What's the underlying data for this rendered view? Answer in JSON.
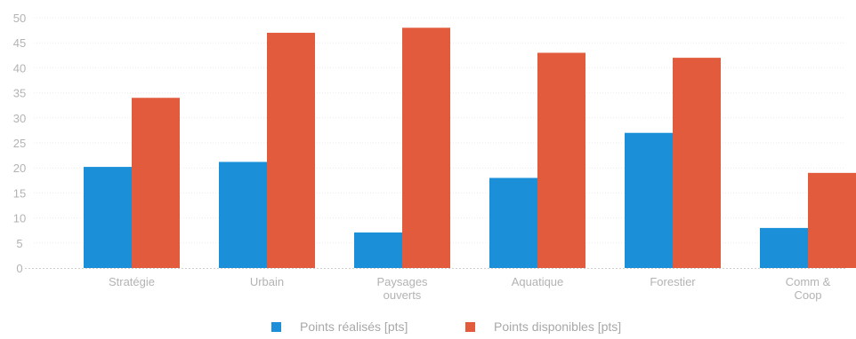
{
  "chart_data": {
    "type": "bar",
    "categories": [
      [
        "Stratégie"
      ],
      [
        "Urbain"
      ],
      [
        "Paysages",
        "ouverts"
      ],
      [
        "Aquatique"
      ],
      [
        "Forestier"
      ],
      [
        "Comm &",
        "Coop"
      ]
    ],
    "series": [
      {
        "name": "Points réalisés [pts]",
        "color": "#1b8fd8",
        "values": [
          20.2,
          21.2,
          7.1,
          18,
          27,
          8
        ]
      },
      {
        "name": "Points disponibles [pts]",
        "color": "#e15b3c",
        "values": [
          34,
          47,
          48,
          43,
          42,
          19
        ]
      }
    ],
    "title": "",
    "xlabel": "",
    "ylabel": "",
    "ylim": [
      0,
      50
    ],
    "yticks": [
      0,
      5,
      10,
      15,
      20,
      25,
      30,
      35,
      40,
      45,
      50
    ],
    "grid": true,
    "legend_position": "bottom-center"
  }
}
